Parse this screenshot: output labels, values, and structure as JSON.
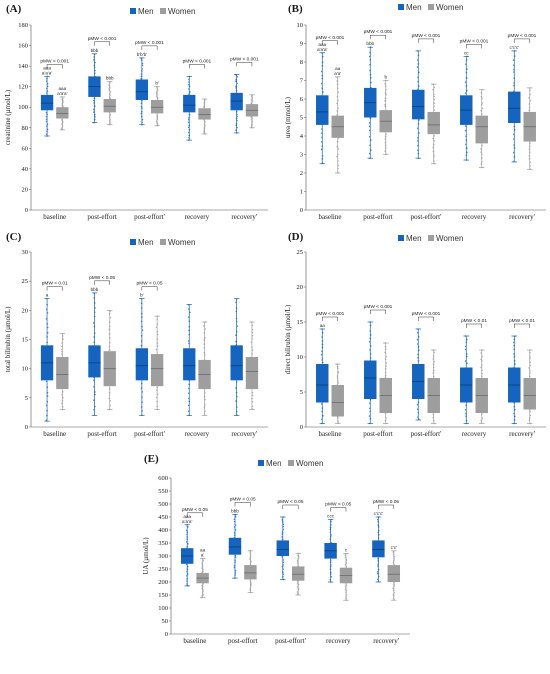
{
  "colors": {
    "men": "#1565c0",
    "women": "#9e9e9e",
    "men_outlier": "#1e73d8",
    "women_outlier": "#a6a6a6"
  },
  "chart_data": [
    {
      "type": "box",
      "panel": "(A)",
      "legend": [
        "Men",
        "Women"
      ],
      "legend_position": "top-center",
      "ylabel": "creatinine (µmol/L)",
      "ylim": [
        0,
        180
      ],
      "yticks": [
        0,
        20,
        40,
        60,
        80,
        100,
        120,
        140,
        160,
        180
      ],
      "categories": [
        "baseline",
        "post-effort",
        "post-effort'",
        "recovery",
        "recovery'"
      ],
      "series": [
        {
          "name": "Men",
          "boxes": [
            {
              "min": 72,
              "q1": 97,
              "median": 104,
              "q3": 112,
              "max": 130
            },
            {
              "min": 85,
              "q1": 110,
              "median": 120,
              "q3": 130,
              "max": 152
            },
            {
              "min": 83,
              "q1": 107,
              "median": 115,
              "q3": 127,
              "max": 148
            },
            {
              "min": 68,
              "q1": 95,
              "median": 102,
              "q3": 112,
              "max": 130
            },
            {
              "min": 75,
              "q1": 97,
              "median": 106,
              "q3": 114,
              "max": 132
            }
          ]
        },
        {
          "name": "Women",
          "boxes": [
            {
              "min": 78,
              "q1": 89,
              "median": 94,
              "q3": 100,
              "max": 110
            },
            {
              "min": 83,
              "q1": 95,
              "median": 101,
              "q3": 108,
              "max": 125
            },
            {
              "min": 82,
              "q1": 94,
              "median": 100,
              "q3": 107,
              "max": 120
            },
            {
              "min": 74,
              "q1": 88,
              "median": 93,
              "q3": 99,
              "max": 108
            },
            {
              "min": 80,
              "q1": 91,
              "median": 97,
              "q3": 103,
              "max": 112
            }
          ]
        }
      ],
      "significance": [
        "pMW < 0.001",
        "pMW < 0.001",
        "pMW < 0.001",
        "pMW < 0.001",
        "pMW < 0.001"
      ],
      "annotations": [
        {
          "cat": 0,
          "series": "Men",
          "lines": [
            "aaa",
            "a'a'a'"
          ]
        },
        {
          "cat": 0,
          "series": "Women",
          "lines": [
            "aaa",
            "a'a'a'"
          ]
        },
        {
          "cat": 1,
          "series": "Men",
          "lines": [
            "bbb"
          ]
        },
        {
          "cat": 1,
          "series": "Women",
          "lines": [
            "bbb"
          ]
        },
        {
          "cat": 2,
          "series": "Men",
          "lines": [
            "b'b'b'"
          ]
        },
        {
          "cat": 2,
          "series": "Women",
          "lines": [
            "b'"
          ]
        }
      ]
    },
    {
      "type": "box",
      "panel": "(B)",
      "legend": [
        "Men",
        "Women"
      ],
      "legend_position": "top-center",
      "ylabel": "urea (mmol/L)",
      "ylim": [
        0,
        10
      ],
      "yticks": [
        0,
        1,
        2,
        3,
        4,
        5,
        6,
        7,
        8,
        9,
        10
      ],
      "categories": [
        "baseline",
        "post-effort",
        "post-effort'",
        "recovery",
        "recovery'"
      ],
      "series": [
        {
          "name": "Men",
          "boxes": [
            {
              "min": 2.5,
              "q1": 4.6,
              "median": 5.3,
              "q3": 6.2,
              "max": 8.5
            },
            {
              "min": 2.8,
              "q1": 5.0,
              "median": 5.8,
              "q3": 6.6,
              "max": 8.8
            },
            {
              "min": 2.8,
              "q1": 4.9,
              "median": 5.6,
              "q3": 6.5,
              "max": 8.6
            },
            {
              "min": 2.7,
              "q1": 4.6,
              "median": 5.4,
              "q3": 6.2,
              "max": 8.3
            },
            {
              "min": 2.6,
              "q1": 4.7,
              "median": 5.5,
              "q3": 6.4,
              "max": 8.6
            }
          ]
        },
        {
          "name": "Women",
          "boxes": [
            {
              "min": 2.0,
              "q1": 3.9,
              "median": 4.5,
              "q3": 5.1,
              "max": 7.2
            },
            {
              "min": 3.0,
              "q1": 4.2,
              "median": 4.8,
              "q3": 5.4,
              "max": 7.0
            },
            {
              "min": 2.5,
              "q1": 4.1,
              "median": 4.6,
              "q3": 5.3,
              "max": 6.8
            },
            {
              "min": 2.3,
              "q1": 3.6,
              "median": 4.5,
              "q3": 5.1,
              "max": 6.5
            },
            {
              "min": 2.2,
              "q1": 3.7,
              "median": 4.5,
              "q3": 5.3,
              "max": 6.6
            }
          ]
        }
      ],
      "significance": [
        "pMW < 0.001",
        "pMW < 0.001",
        "pMW < 0.001",
        "pMW < 0.001",
        "pMW < 0.001"
      ],
      "annotations": [
        {
          "cat": 0,
          "series": "Men",
          "lines": [
            "aaa",
            "a'a'a'"
          ]
        },
        {
          "cat": 0,
          "series": "Women",
          "lines": [
            "aa",
            "a'a'"
          ]
        },
        {
          "cat": 1,
          "series": "Men",
          "lines": [
            "bbb"
          ]
        },
        {
          "cat": 1,
          "series": "Women",
          "lines": [
            "b"
          ]
        },
        {
          "cat": 3,
          "series": "Men",
          "lines": [
            "cc"
          ]
        },
        {
          "cat": 4,
          "series": "Men",
          "lines": [
            "c'c'c'"
          ]
        }
      ]
    },
    {
      "type": "box",
      "panel": "(C)",
      "legend": [
        "Men",
        "Women"
      ],
      "legend_position": "top-center",
      "ylabel": "total bilirubin (µmol/L)",
      "ylim": [
        0,
        30
      ],
      "yticks": [
        0,
        5,
        10,
        15,
        20,
        25,
        30
      ],
      "categories": [
        "baseline",
        "post-effort",
        "post-effort'",
        "recovery",
        "recovery'"
      ],
      "series": [
        {
          "name": "Men",
          "boxes": [
            {
              "min": 1,
              "q1": 8,
              "median": 11,
              "q3": 14,
              "max": 22
            },
            {
              "min": 2,
              "q1": 8.5,
              "median": 11,
              "q3": 14,
              "max": 23
            },
            {
              "min": 2,
              "q1": 8,
              "median": 10.5,
              "q3": 13.5,
              "max": 22
            },
            {
              "min": 2,
              "q1": 8,
              "median": 10.5,
              "q3": 13.5,
              "max": 21
            },
            {
              "min": 2,
              "q1": 8,
              "median": 10.5,
              "q3": 14,
              "max": 22
            }
          ]
        },
        {
          "name": "Women",
          "boxes": [
            {
              "min": 3,
              "q1": 6.5,
              "median": 9,
              "q3": 12,
              "max": 16
            },
            {
              "min": 3,
              "q1": 7,
              "median": 10,
              "q3": 13,
              "max": 20
            },
            {
              "min": 3,
              "q1": 7,
              "median": 10,
              "q3": 12.5,
              "max": 19
            },
            {
              "min": 2,
              "q1": 6.5,
              "median": 9,
              "q3": 11.5,
              "max": 18
            },
            {
              "min": 3,
              "q1": 6.5,
              "median": 9.5,
              "q3": 12,
              "max": 18
            }
          ]
        }
      ],
      "significance": [
        "pMW < 0.01",
        "pMW < 0.05",
        "pMW < 0.05",
        "",
        ""
      ],
      "annotations": [
        {
          "cat": 0,
          "series": "Men",
          "lines": [
            "a"
          ]
        },
        {
          "cat": 1,
          "series": "Men",
          "lines": [
            "bbb"
          ]
        },
        {
          "cat": 2,
          "series": "Men",
          "lines": [
            "b'"
          ]
        }
      ]
    },
    {
      "type": "box",
      "panel": "(D)",
      "legend": [
        "Men",
        "Women"
      ],
      "legend_position": "top-center",
      "ylabel": "direct bilirubin (µmol/L)",
      "ylim": [
        0,
        25
      ],
      "yticks": [
        0,
        5,
        10,
        15,
        20,
        25
      ],
      "categories": [
        "baseline",
        "post-effort",
        "post-effort'",
        "recovery",
        "recovery'"
      ],
      "series": [
        {
          "name": "Men",
          "boxes": [
            {
              "min": 0.5,
              "q1": 3.5,
              "median": 6,
              "q3": 9,
              "max": 14
            },
            {
              "min": 0.5,
              "q1": 4,
              "median": 7,
              "q3": 9.5,
              "max": 15
            },
            {
              "min": 1,
              "q1": 4,
              "median": 6.5,
              "q3": 9,
              "max": 14
            },
            {
              "min": 0.5,
              "q1": 3.5,
              "median": 6,
              "q3": 8.5,
              "max": 13
            },
            {
              "min": 0.5,
              "q1": 3.5,
              "median": 6,
              "q3": 8.5,
              "max": 13
            }
          ]
        },
        {
          "name": "Women",
          "boxes": [
            {
              "min": 0.5,
              "q1": 1.5,
              "median": 3.5,
              "q3": 6,
              "max": 9
            },
            {
              "min": 0.5,
              "q1": 2,
              "median": 4.5,
              "q3": 7,
              "max": 12
            },
            {
              "min": 0.5,
              "q1": 2,
              "median": 4.5,
              "q3": 7,
              "max": 11
            },
            {
              "min": 0.5,
              "q1": 2,
              "median": 4.5,
              "q3": 7,
              "max": 11
            },
            {
              "min": 0.5,
              "q1": 2.5,
              "median": 4.5,
              "q3": 7,
              "max": 11
            }
          ]
        }
      ],
      "significance": [
        "pMW < 0.001",
        "pMW < 0.001",
        "pMW < 0.001",
        "pMW < 0.01",
        "pMW < 0.01"
      ],
      "annotations": [
        {
          "cat": 0,
          "series": "Men",
          "lines": [
            "aa"
          ]
        }
      ]
    },
    {
      "type": "box",
      "panel": "(E)",
      "legend": [
        "Men",
        "Women"
      ],
      "legend_position": "top-center",
      "ylabel": "UA (µmol/L)",
      "ylim": [
        0,
        600
      ],
      "yticks": [
        0,
        50,
        100,
        150,
        200,
        250,
        300,
        350,
        400,
        450,
        500,
        550,
        600
      ],
      "categories": [
        "baseline",
        "post-effort",
        "post-effort'",
        "recovery",
        "recovery'"
      ],
      "series": [
        {
          "name": "Men",
          "boxes": [
            {
              "min": 185,
              "q1": 270,
              "median": 300,
              "q3": 330,
              "max": 420
            },
            {
              "min": 215,
              "q1": 305,
              "median": 335,
              "q3": 370,
              "max": 460
            },
            {
              "min": 210,
              "q1": 300,
              "median": 325,
              "q3": 360,
              "max": 450
            },
            {
              "min": 200,
              "q1": 290,
              "median": 320,
              "q3": 350,
              "max": 440
            },
            {
              "min": 200,
              "q1": 295,
              "median": 325,
              "q3": 360,
              "max": 450
            }
          ]
        },
        {
          "name": "Women",
          "boxes": [
            {
              "min": 140,
              "q1": 195,
              "median": 215,
              "q3": 235,
              "max": 290
            },
            {
              "min": 160,
              "q1": 210,
              "median": 235,
              "q3": 265,
              "max": 320
            },
            {
              "min": 150,
              "q1": 205,
              "median": 230,
              "q3": 260,
              "max": 310
            },
            {
              "min": 130,
              "q1": 195,
              "median": 225,
              "q3": 255,
              "max": 310
            },
            {
              "min": 130,
              "q1": 200,
              "median": 230,
              "q3": 265,
              "max": 320
            }
          ]
        }
      ],
      "significance": [
        "pMW < 0.05",
        "pMW < 0.05",
        "pMW < 0.05",
        "pMW < 0.05",
        "pMW < 0.05"
      ],
      "annotations": [
        {
          "cat": 0,
          "series": "Men",
          "lines": [
            "aaa",
            "a'a'a'"
          ]
        },
        {
          "cat": 0,
          "series": "Women",
          "lines": [
            "aa",
            "a'"
          ]
        },
        {
          "cat": 1,
          "series": "Men",
          "lines": [
            "bbb"
          ]
        },
        {
          "cat": 3,
          "series": "Men",
          "lines": [
            "ccc"
          ]
        },
        {
          "cat": 3,
          "series": "Women",
          "lines": [
            "c"
          ]
        },
        {
          "cat": 4,
          "series": "Men",
          "lines": [
            "c'c'c'"
          ]
        },
        {
          "cat": 4,
          "series": "Women",
          "lines": [
            "c'c'"
          ]
        }
      ]
    }
  ]
}
